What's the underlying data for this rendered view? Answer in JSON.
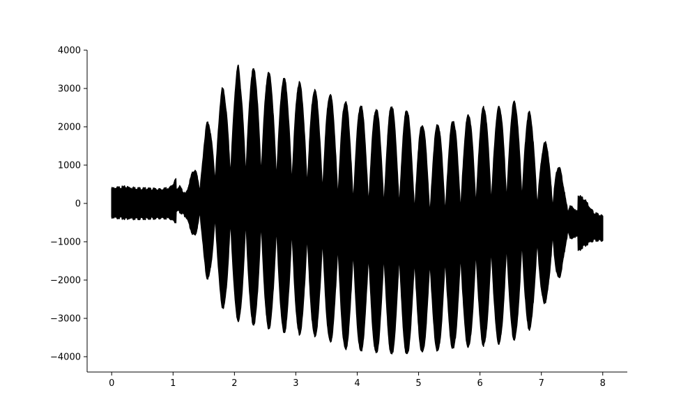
{
  "chart_data": {
    "type": "line",
    "title": "",
    "xlabel": "",
    "ylabel": "",
    "xlim": [
      -0.4,
      8.4
    ],
    "ylim": [
      -4400,
      4000
    ],
    "x_ticks": [
      0,
      1,
      2,
      3,
      4,
      5,
      6,
      7,
      8
    ],
    "x_tick_labels": [
      "0",
      "1",
      "2",
      "3",
      "4",
      "5",
      "6",
      "7",
      "8"
    ],
    "y_ticks": [
      4000,
      3000,
      2000,
      1000,
      0,
      -1000,
      -2000,
      -3000,
      -4000
    ],
    "y_tick_labels": [
      "4000",
      "3000",
      "2000",
      "1000",
      "0",
      "−1000",
      "−2000",
      "−3000",
      "−4000"
    ],
    "grid": false,
    "spines": [
      "left",
      "bottom"
    ],
    "series": [
      {
        "color": "#000000",
        "envelope": {
          "x": [
            0.0,
            0.2,
            0.4,
            0.6,
            0.8,
            0.95,
            1.0,
            1.1,
            1.2,
            1.3,
            1.45,
            1.55,
            1.62,
            1.8,
            1.85,
            2.02,
            2.06,
            2.1,
            2.3,
            2.55,
            2.8,
            3.05,
            3.3,
            3.55,
            3.8,
            4.05,
            4.3,
            4.55,
            4.8,
            5.05,
            5.3,
            5.55,
            5.8,
            6.05,
            6.3,
            6.55,
            6.8,
            7.0,
            7.1,
            7.3,
            7.45,
            7.55,
            7.7,
            7.85,
            8.0
          ],
          "upper": [
            380,
            420,
            390,
            370,
            350,
            400,
            500,
            750,
            600,
            1000,
            1450,
            2100,
            2150,
            3000,
            2900,
            3400,
            3600,
            3300,
            3500,
            3400,
            3250,
            3150,
            2950,
            2850,
            2650,
            2550,
            2450,
            2550,
            2450,
            2050,
            2050,
            2150,
            2300,
            2500,
            2500,
            2650,
            2400,
            1550,
            1600,
            1300,
            800,
            250,
            100,
            -250,
            -350
          ],
          "lower": [
            -350,
            -380,
            -400,
            -380,
            -370,
            -380,
            -450,
            -500,
            -700,
            -1000,
            -1350,
            -1950,
            -2000,
            -2700,
            -2750,
            -3000,
            -3050,
            -3100,
            -3150,
            -3250,
            -3350,
            -3400,
            -3450,
            -3600,
            -3800,
            -3850,
            -3900,
            -3950,
            -3950,
            -3900,
            -3850,
            -3800,
            -3750,
            -3700,
            -3650,
            -3550,
            -3300,
            -2700,
            -2500,
            -2300,
            -1750,
            -1300,
            -1100,
            -950,
            -950
          ]
        },
        "oscillation_period": 0.25
      }
    ]
  }
}
